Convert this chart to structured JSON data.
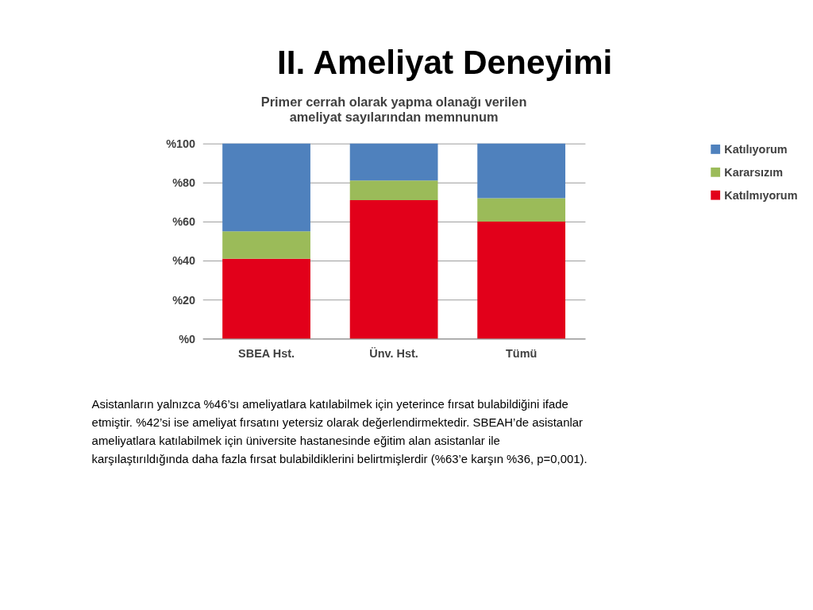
{
  "chart_data": {
    "type": "bar",
    "title": "II. Ameliyat Deneyimi",
    "subtitle": "Primer cerrah olarak yapma olanağı verilen ameliyat sayılarından memnunum",
    "categories": [
      "SBEA Hst.",
      "Ünv. Hst.",
      "Tümü"
    ],
    "stacked": true,
    "series": [
      {
        "name": "Katılmıyorum",
        "color": "#e2001a",
        "values": [
          41,
          71,
          60
        ]
      },
      {
        "name": "Kararsızım",
        "color": "#9bbb59",
        "values": [
          14,
          10,
          12
        ]
      },
      {
        "name": "Katılıyorum",
        "color": "#4f81bd",
        "values": [
          45,
          19,
          28
        ]
      }
    ],
    "ylim": [
      0,
      100
    ],
    "yticks": [
      {
        "value": 0,
        "label": "%0"
      },
      {
        "value": 20,
        "label": "%20"
      },
      {
        "value": 40,
        "label": "%40"
      },
      {
        "value": 60,
        "label": "%60"
      },
      {
        "value": 80,
        "label": "%80"
      },
      {
        "value": 100,
        "label": "%100"
      }
    ],
    "grid": "y",
    "legend": "right",
    "annotations": [
      "Asistanların yalnızca %46’sı ameliyatlara katılabilmek için yeterince fırsat bulabildiğini ifade etmiştir. %42’si ise ameliyat fırsatını yetersiz olarak değerlendirmektedir. SBEAH’de asistanlar ameliyatlara katılabilmek için üniversite hastanesinde eğitim alan asistanlar ile karşılaştırıldığında daha fazla fırsat bulabildiklerini belirtmişlerdir (%63’e karşın %36, p=0,001)."
    ]
  }
}
